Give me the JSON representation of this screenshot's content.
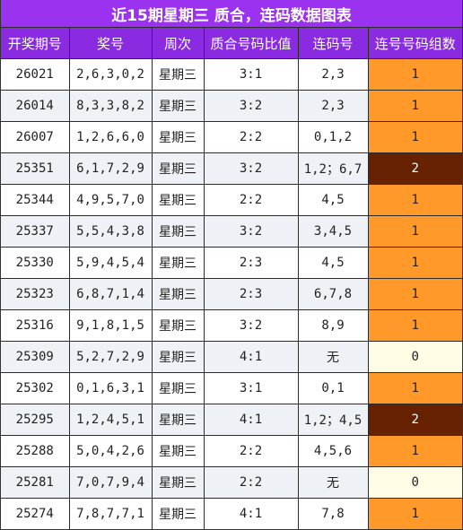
{
  "title": "近15期星期三 质合，连码数据图表",
  "colors": {
    "title_bg": "#9b32f0",
    "header_bg": "#8a2be2",
    "count_1": "#ff9a2a",
    "count_2": "#662200",
    "count_0": "#fffde6"
  },
  "headers": [
    "开奖期号",
    "奖号",
    "周次",
    "质合号码比值",
    "连码号",
    "连号号码组数"
  ],
  "chart_data": {
    "type": "table",
    "title": "近15期星期三 质合，连码数据图表",
    "columns": [
      "开奖期号",
      "奖号",
      "周次",
      "质合号码比值",
      "连码号",
      "连号号码组数"
    ],
    "rows": [
      {
        "issue": "26021",
        "numbers": "2,6,3,0,2",
        "weekday": "星期三",
        "ratio": "3:1",
        "consecutive": "2,3",
        "groups": "1"
      },
      {
        "issue": "26014",
        "numbers": "8,3,3,8,2",
        "weekday": "星期三",
        "ratio": "3:2",
        "consecutive": "2,3",
        "groups": "1"
      },
      {
        "issue": "26007",
        "numbers": "1,2,6,6,0",
        "weekday": "星期三",
        "ratio": "2:2",
        "consecutive": "0,1,2",
        "groups": "1"
      },
      {
        "issue": "25351",
        "numbers": "6,1,7,2,9",
        "weekday": "星期三",
        "ratio": "3:2",
        "consecutive": "1,2；6,7",
        "groups": "2"
      },
      {
        "issue": "25344",
        "numbers": "4,9,5,7,0",
        "weekday": "星期三",
        "ratio": "2:2",
        "consecutive": "4,5",
        "groups": "1"
      },
      {
        "issue": "25337",
        "numbers": "5,5,4,3,8",
        "weekday": "星期三",
        "ratio": "3:2",
        "consecutive": "3,4,5",
        "groups": "1"
      },
      {
        "issue": "25330",
        "numbers": "5,9,4,5,4",
        "weekday": "星期三",
        "ratio": "2:3",
        "consecutive": "4,5",
        "groups": "1"
      },
      {
        "issue": "25323",
        "numbers": "6,8,7,1,4",
        "weekday": "星期三",
        "ratio": "2:3",
        "consecutive": "6,7,8",
        "groups": "1"
      },
      {
        "issue": "25316",
        "numbers": "9,1,8,1,5",
        "weekday": "星期三",
        "ratio": "3:2",
        "consecutive": "8,9",
        "groups": "1"
      },
      {
        "issue": "25309",
        "numbers": "5,2,7,2,9",
        "weekday": "星期三",
        "ratio": "4:1",
        "consecutive": "无",
        "groups": "0"
      },
      {
        "issue": "25302",
        "numbers": "0,1,6,3,1",
        "weekday": "星期三",
        "ratio": "3:1",
        "consecutive": "0,1",
        "groups": "1"
      },
      {
        "issue": "25295",
        "numbers": "1,2,4,5,1",
        "weekday": "星期三",
        "ratio": "4:1",
        "consecutive": "1,2；4,5",
        "groups": "2"
      },
      {
        "issue": "25288",
        "numbers": "5,0,4,2,6",
        "weekday": "星期三",
        "ratio": "2:2",
        "consecutive": "4,5,6",
        "groups": "1"
      },
      {
        "issue": "25281",
        "numbers": "7,0,7,9,4",
        "weekday": "星期三",
        "ratio": "2:2",
        "consecutive": "无",
        "groups": "0"
      },
      {
        "issue": "25274",
        "numbers": "7,8,7,7,1",
        "weekday": "星期三",
        "ratio": "4:1",
        "consecutive": "7,8",
        "groups": "1"
      }
    ]
  }
}
